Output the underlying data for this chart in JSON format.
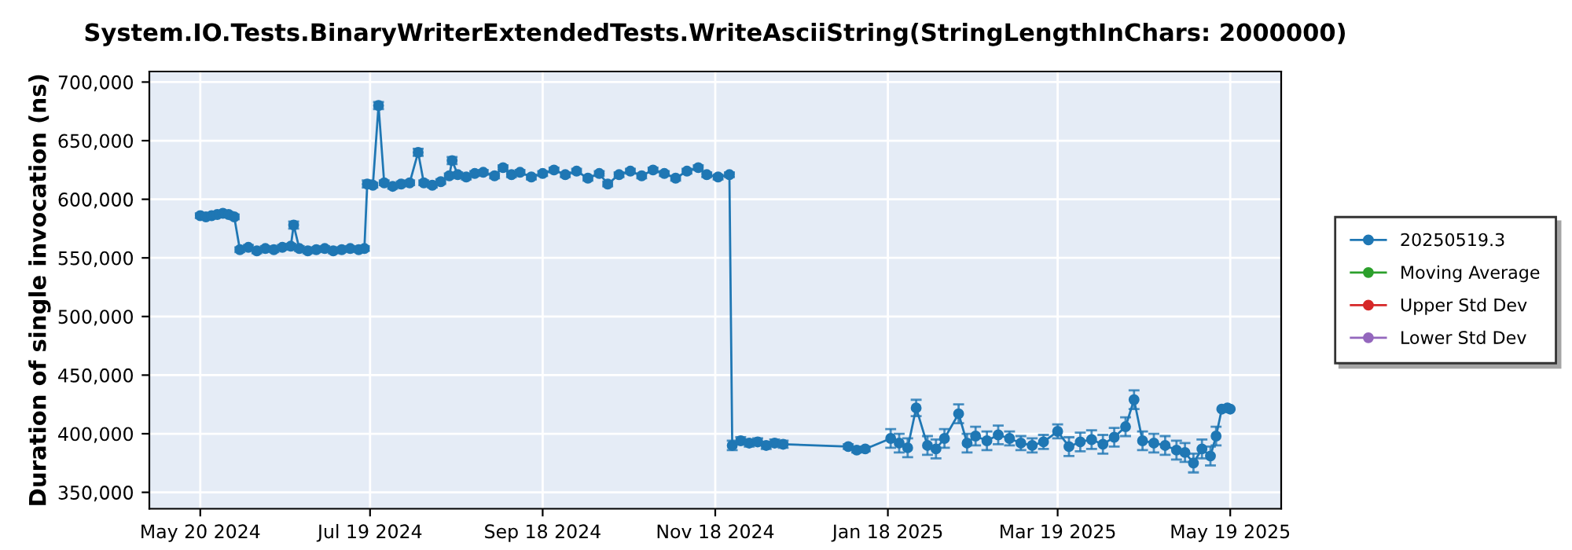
{
  "chart_data": {
    "type": "line",
    "title": "System.IO.Tests.BinaryWriterExtendedTests.WriteAsciiString(StringLengthInChars: 2000000)",
    "ylabel": "Duration of single invocation (ns)",
    "x": [
      "2024-05-20",
      "2024-05-22",
      "2024-05-24",
      "2024-05-26",
      "2024-05-28",
      "2024-05-30",
      "2024-06-01",
      "2024-06-03",
      "2024-06-06",
      "2024-06-09",
      "2024-06-12",
      "2024-06-15",
      "2024-06-18",
      "2024-06-21",
      "2024-06-22",
      "2024-06-24",
      "2024-06-27",
      "2024-06-30",
      "2024-07-03",
      "2024-07-06",
      "2024-07-09",
      "2024-07-12",
      "2024-07-15",
      "2024-07-17",
      "2024-07-18",
      "2024-07-20",
      "2024-07-22",
      "2024-07-24",
      "2024-07-27",
      "2024-07-30",
      "2024-08-02",
      "2024-08-05",
      "2024-08-07",
      "2024-08-10",
      "2024-08-13",
      "2024-08-16",
      "2024-08-17",
      "2024-08-19",
      "2024-08-22",
      "2024-08-25",
      "2024-08-28",
      "2024-09-01",
      "2024-09-04",
      "2024-09-07",
      "2024-09-10",
      "2024-09-14",
      "2024-09-18",
      "2024-09-22",
      "2024-09-26",
      "2024-09-30",
      "2024-10-04",
      "2024-10-08",
      "2024-10-11",
      "2024-10-15",
      "2024-10-19",
      "2024-10-23",
      "2024-10-27",
      "2024-10-31",
      "2024-11-04",
      "2024-11-08",
      "2024-11-12",
      "2024-11-15",
      "2024-11-19",
      "2024-11-23",
      "2024-11-24",
      "2024-11-27",
      "2024-11-30",
      "2024-12-03",
      "2024-12-06",
      "2024-12-09",
      "2024-12-12",
      "2025-01-04",
      "2025-01-07",
      "2025-01-10",
      "2025-01-19",
      "2025-01-22",
      "2025-01-25",
      "2025-01-28",
      "2025-02-01",
      "2025-02-04",
      "2025-02-07",
      "2025-02-12",
      "2025-02-15",
      "2025-02-18",
      "2025-02-22",
      "2025-02-26",
      "2025-03-02",
      "2025-03-06",
      "2025-03-10",
      "2025-03-14",
      "2025-03-19",
      "2025-03-23",
      "2025-03-27",
      "2025-03-31",
      "2025-04-04",
      "2025-04-08",
      "2025-04-12",
      "2025-04-15",
      "2025-04-18",
      "2025-04-22",
      "2025-04-26",
      "2025-04-30",
      "2025-05-03",
      "2025-05-06",
      "2025-05-09",
      "2025-05-12",
      "2025-05-14",
      "2025-05-16",
      "2025-05-18",
      "2025-05-19"
    ],
    "series": [
      {
        "name": "20250519.3",
        "color": "#1f77b4",
        "values": [
          586000,
          585000,
          586000,
          587000,
          588000,
          587000,
          585000,
          557000,
          559000,
          556000,
          558000,
          557000,
          559000,
          560000,
          578000,
          558000,
          556000,
          557000,
          558000,
          556000,
          557000,
          558000,
          557000,
          558000,
          613000,
          612000,
          680000,
          614000,
          611000,
          613000,
          614000,
          640000,
          614000,
          612000,
          615000,
          620000,
          633000,
          621000,
          619000,
          622000,
          623000,
          620000,
          627000,
          621000,
          623000,
          619000,
          622000,
          625000,
          621000,
          624000,
          618000,
          622000,
          613000,
          621000,
          624000,
          620000,
          625000,
          622000,
          618000,
          624000,
          627000,
          621000,
          619000,
          621000,
          390000,
          394000,
          392000,
          393000,
          390000,
          392000,
          391000,
          389000,
          386000,
          387000,
          396000,
          392000,
          388000,
          422000,
          390000,
          387000,
          396000,
          417000,
          392000,
          398000,
          394000,
          399000,
          396000,
          392000,
          390000,
          393000,
          402000,
          389000,
          393000,
          395000,
          391000,
          397000,
          406000,
          429000,
          394000,
          392000,
          390000,
          386000,
          384000,
          375000,
          387000,
          381000,
          398000,
          421000,
          422000,
          421000
        ],
        "errors": [
          2000,
          2000,
          2000,
          2000,
          2000,
          2000,
          2000,
          2000,
          2000,
          2000,
          2000,
          2000,
          2000,
          2000,
          3000,
          2000,
          2000,
          2000,
          2000,
          2000,
          2000,
          2000,
          2000,
          2000,
          3000,
          2000,
          3000,
          2000,
          2000,
          2000,
          2000,
          3000,
          2000,
          2000,
          2000,
          2000,
          3000,
          2000,
          2000,
          2000,
          2000,
          2000,
          2000,
          2000,
          2000,
          2000,
          2000,
          2000,
          2000,
          2000,
          2000,
          2000,
          2000,
          2000,
          2000,
          2000,
          2000,
          2000,
          2000,
          2000,
          2000,
          2000,
          2000,
          2000,
          4000,
          3000,
          3000,
          3000,
          3000,
          3000,
          3000,
          2000,
          2000,
          2000,
          8000,
          8000,
          8000,
          7000,
          8000,
          8000,
          8000,
          8000,
          8000,
          8000,
          8000,
          8000,
          6000,
          6000,
          6000,
          6000,
          6000,
          8000,
          8000,
          8000,
          8000,
          8000,
          8000,
          8000,
          8000,
          8000,
          8000,
          8000,
          8000,
          8000,
          8000,
          8000,
          8000,
          null,
          null,
          null
        ]
      },
      {
        "name": "Moving Average",
        "color": "#2ca02c",
        "values": [
          null,
          null,
          null,
          null,
          null,
          null,
          null,
          null,
          null,
          null,
          null,
          null,
          null,
          null,
          null,
          null,
          null,
          null,
          null,
          null,
          null,
          null,
          null,
          null,
          null,
          null,
          null,
          null,
          null,
          null,
          null,
          null,
          null,
          null,
          null,
          null,
          null,
          null,
          null,
          null,
          null,
          null,
          null,
          null,
          null,
          null,
          null,
          null,
          null,
          null,
          null,
          null,
          null,
          null,
          null,
          null,
          null,
          null,
          null,
          null,
          null,
          null,
          null,
          null,
          null,
          null,
          null,
          null,
          null,
          null,
          null,
          null,
          null,
          null,
          null,
          null,
          null,
          null,
          null,
          null,
          null,
          null,
          null,
          null,
          null,
          null,
          null,
          null,
          null,
          null,
          null,
          null,
          null,
          null,
          null,
          null,
          null,
          null,
          null,
          null,
          null,
          null,
          null,
          null,
          null,
          null,
          null,
          null,
          null,
          null
        ]
      },
      {
        "name": "Upper Std Dev",
        "color": "#d62728",
        "values": [
          null,
          null,
          null,
          null,
          null,
          null,
          null,
          null,
          null,
          null,
          null,
          null,
          null,
          null,
          null,
          null,
          null,
          null,
          null,
          null,
          null,
          null,
          null,
          null,
          null,
          null,
          null,
          null,
          null,
          null,
          null,
          null,
          null,
          null,
          null,
          null,
          null,
          null,
          null,
          null,
          null,
          null,
          null,
          null,
          null,
          null,
          null,
          null,
          null,
          null,
          null,
          null,
          null,
          null,
          null,
          null,
          null,
          null,
          null,
          null,
          null,
          null,
          null,
          null,
          null,
          null,
          null,
          null,
          null,
          null,
          null,
          null,
          null,
          null,
          null,
          null,
          null,
          null,
          null,
          null,
          null,
          null,
          null,
          null,
          null,
          null,
          null,
          null,
          null,
          null,
          null,
          null,
          null,
          null,
          null,
          null,
          null,
          null,
          null,
          null,
          null,
          null,
          null,
          null,
          null,
          null,
          null,
          null,
          null,
          null
        ]
      },
      {
        "name": "Lower Std Dev",
        "color": "#9467bd",
        "values": [
          null,
          null,
          null,
          null,
          null,
          null,
          null,
          null,
          null,
          null,
          null,
          null,
          null,
          null,
          null,
          null,
          null,
          null,
          null,
          null,
          null,
          null,
          null,
          null,
          null,
          null,
          null,
          null,
          null,
          null,
          null,
          null,
          null,
          null,
          null,
          null,
          null,
          null,
          null,
          null,
          null,
          null,
          null,
          null,
          null,
          null,
          null,
          null,
          null,
          null,
          null,
          null,
          null,
          null,
          null,
          null,
          null,
          null,
          null,
          null,
          null,
          null,
          null,
          null,
          null,
          null,
          null,
          null,
          null,
          null,
          null,
          null,
          null,
          null,
          null,
          null,
          null,
          null,
          null,
          null,
          null,
          null,
          null,
          null,
          null,
          null,
          null,
          null,
          null,
          null,
          null,
          null,
          null,
          null,
          null,
          null,
          null,
          null,
          null,
          null,
          null,
          null,
          null,
          null,
          null,
          null,
          null,
          null,
          null,
          null
        ]
      }
    ],
    "xlim": [
      "2024-05-02",
      "2025-06-06"
    ],
    "xticks": [
      {
        "value": "2024-05-20",
        "label": "May 20 2024"
      },
      {
        "value": "2024-07-19",
        "label": "Jul 19 2024"
      },
      {
        "value": "2024-09-18",
        "label": "Sep 18 2024"
      },
      {
        "value": "2024-11-18",
        "label": "Nov 18 2024"
      },
      {
        "value": "2025-01-18",
        "label": "Jan 18 2025"
      },
      {
        "value": "2025-03-19",
        "label": "Mar 19 2025"
      },
      {
        "value": "2025-05-19",
        "label": "May 19 2025"
      }
    ],
    "ylim": [
      336000,
      709000
    ],
    "yticks": [
      {
        "value": 350000,
        "label": "350,000"
      },
      {
        "value": 400000,
        "label": "400,000"
      },
      {
        "value": 450000,
        "label": "450,000"
      },
      {
        "value": 500000,
        "label": "500,000"
      },
      {
        "value": 550000,
        "label": "550,000"
      },
      {
        "value": 600000,
        "label": "600,000"
      },
      {
        "value": 650000,
        "label": "650,000"
      },
      {
        "value": 700000,
        "label": "700,000"
      }
    ],
    "grid": true,
    "legend": "right",
    "marker": "circle",
    "line_style": "solid"
  }
}
